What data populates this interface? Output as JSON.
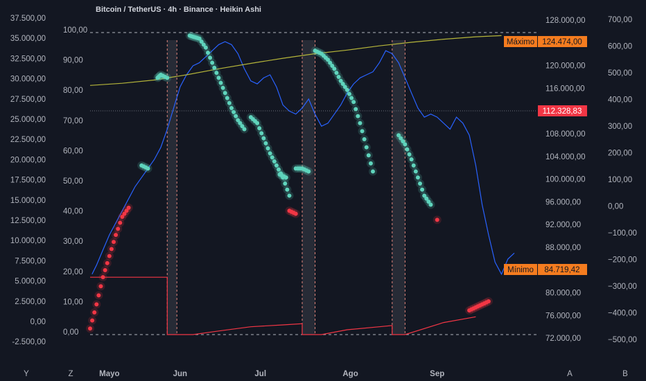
{
  "chart_data": {
    "type": "line",
    "title": "Bitcoin / TetherUS · 4h · Binance · Heikin Ashi",
    "x_ticks": [
      "Mayo",
      "Jun",
      "Jul",
      "Ago",
      "Sep"
    ],
    "bottom_markers": [
      "Y",
      "Z",
      "A",
      "B"
    ],
    "left_outer_axis": {
      "ticks": [
        "37.500,00",
        "35.000,00",
        "32.500,00",
        "30.000,00",
        "27.500,00",
        "25.000,00",
        "22.500,00",
        "20.000,00",
        "17.500,00",
        "15.000,00",
        "12.500,00",
        "10.000,00",
        "7.500,00",
        "5.000,00",
        "2.500,00",
        "0,00",
        "-2.500,00"
      ],
      "ylim": [
        -2500,
        37500
      ]
    },
    "left_inner_axis": {
      "ticks": [
        "100,00",
        "90,00",
        "80,00",
        "70,00",
        "60,00",
        "50,00",
        "40,00",
        "30,00",
        "20,00",
        "10,00",
        "0,00"
      ],
      "ylim": [
        0,
        100
      ]
    },
    "price_axis": {
      "ticks": [
        "128.000,00",
        "124.000,00",
        "120.000,00",
        "116.000,00",
        "112.000,00",
        "108.000,00",
        "104.000,00",
        "100.000,00",
        "96.000,00",
        "92.000,00",
        "88.000,00",
        "84.000,00",
        "80.000,00",
        "76.000,00",
        "72.000,00"
      ],
      "ylim": [
        72000,
        128000
      ]
    },
    "right_axis": {
      "ticks": [
        "700,00",
        "600,00",
        "500,00",
        "400,00",
        "300,00",
        "200,00",
        "100,00",
        "0,00",
        "−100,00",
        "−200,00",
        "−300,00",
        "−400,00",
        "−500,00"
      ],
      "ylim": [
        -500,
        700
      ]
    },
    "price_tags": [
      {
        "label": "Máximo",
        "value": "124.474,00",
        "color": "#f57c1f"
      },
      {
        "label": "",
        "value": "112.328,83",
        "color": "#f23645"
      },
      {
        "label": "Mínimo",
        "value": "84.719,42",
        "color": "#f57c1f"
      }
    ],
    "series": [
      {
        "type": "line",
        "color": "#2962ff",
        "points": [
          [
            0.3,
            20
          ],
          [
            1,
            23
          ],
          [
            2,
            28
          ],
          [
            3,
            33
          ],
          [
            4,
            37
          ],
          [
            5,
            41
          ],
          [
            6,
            45
          ],
          [
            7,
            49
          ],
          [
            8,
            52
          ],
          [
            9,
            55
          ],
          [
            10,
            58
          ],
          [
            11,
            62
          ],
          [
            12,
            68
          ],
          [
            13,
            75
          ],
          [
            14,
            82
          ],
          [
            15,
            86
          ],
          [
            16,
            89
          ],
          [
            17,
            90
          ],
          [
            18,
            92
          ],
          [
            19,
            94
          ],
          [
            20,
            96
          ],
          [
            21,
            97
          ],
          [
            22,
            96
          ],
          [
            23,
            93
          ],
          [
            24,
            88
          ],
          [
            25,
            84
          ],
          [
            26,
            83
          ],
          [
            27,
            85
          ],
          [
            28,
            86
          ],
          [
            29,
            82
          ],
          [
            30,
            76
          ],
          [
            31,
            74
          ],
          [
            32,
            73
          ],
          [
            33,
            75
          ],
          [
            34,
            78
          ],
          [
            35,
            73
          ],
          [
            36,
            69
          ],
          [
            37,
            70
          ],
          [
            38,
            73
          ],
          [
            39,
            76
          ],
          [
            40,
            80
          ],
          [
            41,
            83
          ],
          [
            42,
            85
          ],
          [
            43,
            86
          ],
          [
            44,
            87
          ],
          [
            45,
            90
          ],
          [
            46,
            94
          ],
          [
            47,
            93
          ],
          [
            48,
            90
          ],
          [
            49,
            85
          ],
          [
            50,
            80
          ],
          [
            51,
            75
          ],
          [
            52,
            72
          ],
          [
            53,
            73
          ],
          [
            54,
            72
          ],
          [
            55,
            70
          ],
          [
            56,
            68
          ],
          [
            57,
            72
          ],
          [
            58,
            70
          ],
          [
            59,
            66
          ],
          [
            60,
            56
          ],
          [
            61,
            43
          ],
          [
            62,
            33
          ],
          [
            63,
            24
          ],
          [
            64,
            20
          ],
          [
            65,
            25
          ],
          [
            66,
            27
          ]
        ]
      },
      {
        "type": "line",
        "color": "#b5b53a",
        "points": [
          [
            0,
            82.5
          ],
          [
            5,
            83.2
          ],
          [
            10,
            84.3
          ],
          [
            15,
            86
          ],
          [
            20,
            88
          ],
          [
            25,
            89.8
          ],
          [
            30,
            91.5
          ],
          [
            35,
            93
          ],
          [
            40,
            94.2
          ],
          [
            45,
            95.6
          ],
          [
            50,
            96.8
          ],
          [
            55,
            97.8
          ],
          [
            60,
            98.6
          ],
          [
            64,
            99
          ]
        ]
      },
      {
        "type": "line",
        "color": "#f23645",
        "points": [
          [
            0,
            19
          ],
          [
            12,
            19
          ],
          [
            12,
            0
          ],
          [
            16,
            0
          ],
          [
            20,
            1.2
          ],
          [
            25,
            2.6
          ],
          [
            30,
            3.2
          ],
          [
            33,
            3.6
          ],
          [
            33,
            0
          ],
          [
            36,
            0
          ],
          [
            40,
            1.6
          ],
          [
            45,
            2.6
          ],
          [
            47,
            3.0
          ],
          [
            47,
            0
          ],
          [
            49,
            0
          ],
          [
            55,
            4
          ],
          [
            60,
            5.9
          ]
        ]
      },
      {
        "type": "dots",
        "color": "#5fd4bc",
        "segments": [
          [
            [
              15.5,
              99
            ],
            [
              16.2,
              98.5
            ],
            [
              17,
              98
            ],
            [
              18,
              95
            ],
            [
              19,
              90
            ],
            [
              20,
              85
            ],
            [
              21,
              80
            ],
            [
              22,
              75
            ],
            [
              23,
              71
            ],
            [
              24,
              68
            ]
          ],
          [
            [
              10.5,
              85
            ],
            [
              11,
              86
            ],
            [
              12,
              85
            ]
          ],
          [
            [
              8,
              56
            ],
            [
              9,
              55
            ]
          ],
          [
            [
              25,
              72
            ],
            [
              26,
              70
            ],
            [
              27,
              65
            ],
            [
              28,
              60
            ],
            [
              29,
              56
            ],
            [
              30,
              52
            ],
            [
              31,
              46
            ]
          ],
          [
            [
              29.5,
              53
            ],
            [
              30.5,
              52
            ]
          ],
          [
            [
              32,
              55
            ],
            [
              33,
              55
            ],
            [
              34,
              54
            ]
          ],
          [
            [
              35,
              94
            ],
            [
              36,
              93
            ],
            [
              37,
              91
            ],
            [
              38,
              88
            ],
            [
              39,
              84
            ],
            [
              40,
              81
            ],
            [
              41,
              77
            ],
            [
              42,
              70
            ],
            [
              43,
              62
            ],
            [
              44,
              54
            ]
          ],
          [
            [
              48,
              66
            ],
            [
              49,
              63
            ],
            [
              50,
              58
            ],
            [
              51,
              52
            ],
            [
              52,
              46
            ],
            [
              53,
              43
            ]
          ]
        ]
      },
      {
        "type": "dots",
        "color": "#f23645",
        "segments": [
          [
            [
              0,
              2
            ],
            [
              1,
              10
            ],
            [
              2,
              19
            ],
            [
              3,
              26
            ],
            [
              4,
              33
            ],
            [
              5,
              39
            ],
            [
              6,
              42
            ]
          ],
          [
            [
              31,
              41
            ],
            [
              32,
              40
            ]
          ],
          [
            [
              54,
              38
            ]
          ],
          [
            [
              59,
              8
            ],
            [
              60,
              9
            ],
            [
              61,
              10
            ],
            [
              62,
              11
            ]
          ]
        ]
      }
    ],
    "highlight_bands": [
      [
        12,
        13.5
      ],
      [
        33,
        35
      ],
      [
        47,
        49
      ]
    ],
    "x_tick_positions": [
      3,
      14,
      26.5,
      40.5,
      54
    ]
  }
}
